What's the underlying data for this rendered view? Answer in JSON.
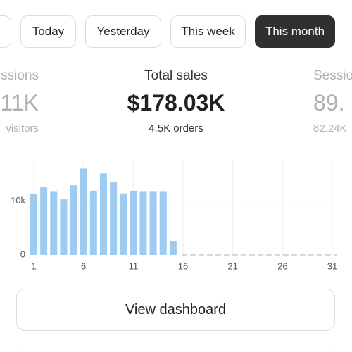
{
  "filters": [
    "Today",
    "Yesterday",
    "This week",
    "This month"
  ],
  "active_filter_index": 3,
  "metrics": [
    {
      "label": "ssions",
      "value": "11K",
      "sub": "visitors"
    },
    {
      "label": "Total sales",
      "value": "$178.03K",
      "sub": "4.5K orders"
    },
    {
      "label": "Sessio",
      "value": "89.",
      "sub": "82.24K"
    }
  ],
  "chart_data": {
    "type": "bar",
    "x": [
      1,
      2,
      3,
      4,
      5,
      6,
      7,
      8,
      9,
      10,
      11,
      12,
      13,
      14,
      15,
      16,
      17,
      18,
      19,
      20,
      21,
      22,
      23,
      24,
      25,
      26,
      27,
      28,
      29,
      30,
      31
    ],
    "values": [
      11300,
      12600,
      11700,
      10300,
      12900,
      16000,
      11900,
      15100,
      13500,
      11400,
      11900,
      11700,
      11700,
      11700,
      2600,
      null,
      null,
      null,
      null,
      null,
      null,
      null,
      null,
      null,
      null,
      null,
      null,
      null,
      null,
      null,
      null
    ],
    "color": "#9ecbf2",
    "xlim": [
      1,
      31
    ],
    "xticks": [
      1,
      6,
      11,
      16,
      21,
      26,
      31
    ],
    "ylim": [
      0,
      17500
    ],
    "yticks": [
      0,
      {
        "value": 10000,
        "label": "10k"
      }
    ],
    "grid": true
  },
  "button": "View dashboard"
}
